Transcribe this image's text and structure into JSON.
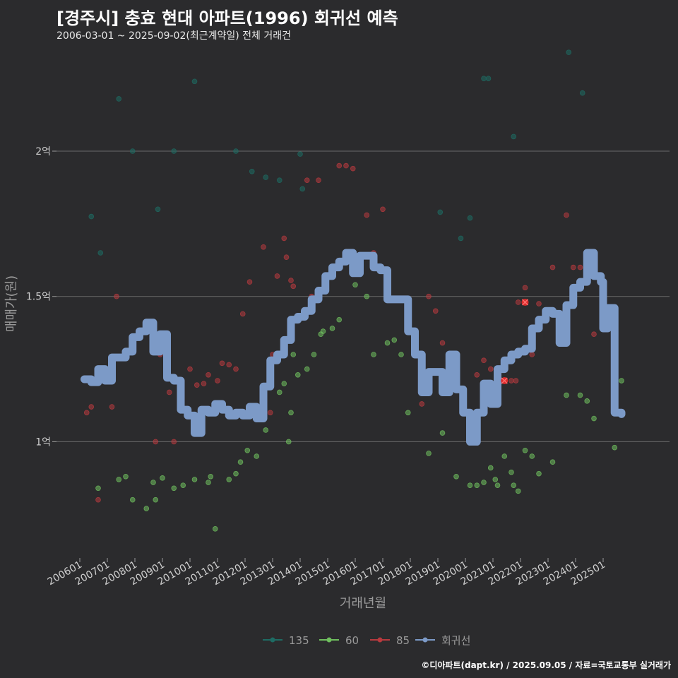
{
  "header": {
    "title": "[경주시] 충효 현대 아파트(1996) 회귀선 예측",
    "subtitle": "2006-03-01 ~ 2025-09-02(최근계약일) 전체 거래건"
  },
  "footer": {
    "credit": "©디아파트(dapt.kr) / 2025.09.05 / 자료=국토교통부 실거래가"
  },
  "chart_data": {
    "type": "scatter",
    "xlabel": "거래년월",
    "ylabel": "매매가(원)",
    "x_range": [
      "2006-01",
      "2025-09"
    ],
    "ylim": [
      60000000,
      235000000
    ],
    "x_ticks": [
      "200601",
      "200701",
      "200801",
      "200901",
      "201001",
      "201101",
      "201201",
      "201301",
      "201401",
      "201501",
      "201601",
      "201701",
      "201801",
      "201901",
      "202001",
      "202101",
      "202201",
      "202301",
      "202401",
      "202501"
    ],
    "y_ticks": [
      {
        "value": 100000000,
        "label": "1억"
      },
      {
        "value": 150000000,
        "label": "1.5억"
      },
      {
        "value": 200000000,
        "label": "2억"
      }
    ],
    "grid": true,
    "legend_position": "bottom",
    "series": [
      {
        "name": "135",
        "color": "#1e6b63",
        "points": [
          [
            "2006-06",
            177500000
          ],
          [
            "2006-10",
            165000000
          ],
          [
            "2007-06",
            218000000
          ],
          [
            "2007-12",
            200000000
          ],
          [
            "2008-11",
            180000000
          ],
          [
            "2009-06",
            200000000
          ],
          [
            "2010-03",
            224000000
          ],
          [
            "2011-09",
            200000000
          ],
          [
            "2012-04",
            193000000
          ],
          [
            "2012-10",
            191000000
          ],
          [
            "2013-04",
            190000000
          ],
          [
            "2014-01",
            199000000
          ],
          [
            "2014-02",
            187000000
          ],
          [
            "2019-02",
            179000000
          ],
          [
            "2019-11",
            170000000
          ],
          [
            "2020-03",
            177000000
          ],
          [
            "2020-09",
            225000000
          ],
          [
            "2020-11",
            225000000
          ],
          [
            "2021-10",
            205000000
          ],
          [
            "2023-10",
            234000000
          ],
          [
            "2024-04",
            220000000
          ]
        ]
      },
      {
        "name": "60",
        "color": "#6fbf5e",
        "points": [
          [
            "2006-09",
            84000000
          ],
          [
            "2007-06",
            87000000
          ],
          [
            "2007-09",
            88000000
          ],
          [
            "2007-12",
            80000000
          ],
          [
            "2008-06",
            77000000
          ],
          [
            "2008-09",
            86000000
          ],
          [
            "2008-10",
            80000000
          ],
          [
            "2009-01",
            87500000
          ],
          [
            "2009-06",
            84000000
          ],
          [
            "2009-10",
            85000000
          ],
          [
            "2010-03",
            87000000
          ],
          [
            "2010-09",
            86000000
          ],
          [
            "2010-10",
            88000000
          ],
          [
            "2010-12",
            70000000
          ],
          [
            "2011-06",
            87000000
          ],
          [
            "2011-09",
            89000000
          ],
          [
            "2011-11",
            93000000
          ],
          [
            "2012-02",
            97000000
          ],
          [
            "2012-06",
            95000000
          ],
          [
            "2012-10",
            104000000
          ],
          [
            "2013-04",
            117000000
          ],
          [
            "2013-06",
            120000000
          ],
          [
            "2013-08",
            100000000
          ],
          [
            "2013-09",
            110000000
          ],
          [
            "2013-10",
            130000000
          ],
          [
            "2013-12",
            123000000
          ],
          [
            "2014-04",
            125000000
          ],
          [
            "2014-07",
            130000000
          ],
          [
            "2014-10",
            137000000
          ],
          [
            "2014-11",
            138000000
          ],
          [
            "2015-03",
            139000000
          ],
          [
            "2015-06",
            142000000
          ],
          [
            "2016-01",
            154000000
          ],
          [
            "2016-06",
            150000000
          ],
          [
            "2016-09",
            130000000
          ],
          [
            "2017-03",
            134000000
          ],
          [
            "2017-06",
            135000000
          ],
          [
            "2017-09",
            130000000
          ],
          [
            "2017-12",
            110000000
          ],
          [
            "2018-09",
            96000000
          ],
          [
            "2019-03",
            103000000
          ],
          [
            "2019-09",
            88000000
          ],
          [
            "2020-03",
            85000000
          ],
          [
            "2020-06",
            85000000
          ],
          [
            "2020-09",
            86000000
          ],
          [
            "2020-12",
            91000000
          ],
          [
            "2021-02",
            87000000
          ],
          [
            "2021-03",
            85000000
          ],
          [
            "2021-06",
            95000000
          ],
          [
            "2021-09",
            89500000
          ],
          [
            "2021-10",
            85000000
          ],
          [
            "2021-12",
            83000000
          ],
          [
            "2022-03",
            97000000
          ],
          [
            "2022-06",
            95000000
          ],
          [
            "2022-09",
            89000000
          ],
          [
            "2023-03",
            93000000
          ],
          [
            "2023-09",
            116000000
          ],
          [
            "2024-03",
            116000000
          ],
          [
            "2024-06",
            114000000
          ],
          [
            "2024-09",
            108000000
          ],
          [
            "2025-06",
            98000000
          ],
          [
            "2025-09",
            121000000
          ]
        ]
      },
      {
        "name": "85",
        "color": "#b73a3e",
        "points": [
          [
            "2006-04",
            110000000
          ],
          [
            "2006-06",
            112000000
          ],
          [
            "2006-09",
            80000000
          ],
          [
            "2007-01",
            123500000
          ],
          [
            "2007-03",
            112000000
          ],
          [
            "2007-05",
            150000000
          ],
          [
            "2008-10",
            100000000
          ],
          [
            "2008-12",
            130000000
          ],
          [
            "2009-04",
            117000000
          ],
          [
            "2009-06",
            100000000
          ],
          [
            "2009-09",
            120000000
          ],
          [
            "2010-01",
            125000000
          ],
          [
            "2010-04",
            119500000
          ],
          [
            "2010-07",
            120000000
          ],
          [
            "2010-09",
            123000000
          ],
          [
            "2011-01",
            121000000
          ],
          [
            "2011-03",
            127000000
          ],
          [
            "2011-06",
            126500000
          ],
          [
            "2011-09",
            125000000
          ],
          [
            "2011-12",
            144000000
          ],
          [
            "2012-03",
            155000000
          ],
          [
            "2012-09",
            167000000
          ],
          [
            "2012-12",
            110000000
          ],
          [
            "2013-01",
            130000000
          ],
          [
            "2013-03",
            157000000
          ],
          [
            "2013-06",
            170000000
          ],
          [
            "2013-07",
            163500000
          ],
          [
            "2013-09",
            155500000
          ],
          [
            "2013-10",
            153500000
          ],
          [
            "2014-04",
            190000000
          ],
          [
            "2014-06",
            150000000
          ],
          [
            "2014-09",
            190000000
          ],
          [
            "2015-06",
            195000000
          ],
          [
            "2015-09",
            195000000
          ],
          [
            "2015-12",
            194000000
          ],
          [
            "2016-06",
            178000000
          ],
          [
            "2016-09",
            165000000
          ],
          [
            "2017-01",
            180000000
          ],
          [
            "2018-03",
            130000000
          ],
          [
            "2018-06",
            113000000
          ],
          [
            "2018-09",
            150000000
          ],
          [
            "2018-12",
            145000000
          ],
          [
            "2019-03",
            134000000
          ],
          [
            "2020-06",
            123000000
          ],
          [
            "2020-09",
            128000000
          ],
          [
            "2020-12",
            125000000
          ],
          [
            "2021-03",
            121000000
          ],
          [
            "2021-06",
            128000000
          ],
          [
            "2021-09",
            121000000
          ],
          [
            "2021-11",
            121000000
          ],
          [
            "2021-12",
            148000000
          ],
          [
            "2022-03",
            153000000
          ],
          [
            "2022-06",
            130000000
          ],
          [
            "2022-09",
            147500000
          ],
          [
            "2023-03",
            160000000
          ],
          [
            "2023-09",
            178000000
          ],
          [
            "2023-12",
            160000000
          ],
          [
            "2024-03",
            160000000
          ],
          [
            "2024-09",
            137000000
          ]
        ]
      },
      {
        "name": "회귀선",
        "color": "#7c9ac7",
        "points": [
          [
            "2006-03",
            121500000
          ],
          [
            "2006-06",
            120500000
          ],
          [
            "2006-09",
            125000000
          ],
          [
            "2006-12",
            121000000
          ],
          [
            "2007-03",
            129000000
          ],
          [
            "2007-06",
            129000000
          ],
          [
            "2007-09",
            131000000
          ],
          [
            "2007-12",
            136000000
          ],
          [
            "2008-03",
            138000000
          ],
          [
            "2008-06",
            141000000
          ],
          [
            "2008-09",
            131000000
          ],
          [
            "2008-12",
            137000000
          ],
          [
            "2009-03",
            122000000
          ],
          [
            "2009-06",
            121000000
          ],
          [
            "2009-09",
            111000000
          ],
          [
            "2009-12",
            109000000
          ],
          [
            "2010-03",
            103000000
          ],
          [
            "2010-06",
            111000000
          ],
          [
            "2010-09",
            110000000
          ],
          [
            "2010-12",
            113000000
          ],
          [
            "2011-03",
            111000000
          ],
          [
            "2011-06",
            109000000
          ],
          [
            "2011-09",
            110000000
          ],
          [
            "2011-12",
            109000000
          ],
          [
            "2012-03",
            112000000
          ],
          [
            "2012-06",
            108000000
          ],
          [
            "2012-09",
            119000000
          ],
          [
            "2012-12",
            128000000
          ],
          [
            "2013-03",
            130000000
          ],
          [
            "2013-06",
            135000000
          ],
          [
            "2013-09",
            142000000
          ],
          [
            "2013-12",
            143000000
          ],
          [
            "2014-03",
            145000000
          ],
          [
            "2014-06",
            149000000
          ],
          [
            "2014-09",
            152000000
          ],
          [
            "2014-12",
            157000000
          ],
          [
            "2015-03",
            160000000
          ],
          [
            "2015-06",
            162000000
          ],
          [
            "2015-09",
            165000000
          ],
          [
            "2015-12",
            158000000
          ],
          [
            "2016-03",
            164000000
          ],
          [
            "2016-06",
            164000000
          ],
          [
            "2016-09",
            160000000
          ],
          [
            "2016-12",
            159000000
          ],
          [
            "2017-03",
            149000000
          ],
          [
            "2017-06",
            149000000
          ],
          [
            "2017-09",
            149000000
          ],
          [
            "2017-12",
            138000000
          ],
          [
            "2018-03",
            130000000
          ],
          [
            "2018-06",
            117000000
          ],
          [
            "2018-09",
            124000000
          ],
          [
            "2018-12",
            124000000
          ],
          [
            "2019-03",
            117000000
          ],
          [
            "2019-06",
            130000000
          ],
          [
            "2019-09",
            118000000
          ],
          [
            "2019-12",
            110000000
          ],
          [
            "2020-03",
            100000000
          ],
          [
            "2020-06",
            110000000
          ],
          [
            "2020-09",
            120000000
          ],
          [
            "2020-12",
            113000000
          ],
          [
            "2021-03",
            125000000
          ],
          [
            "2021-06",
            128000000
          ],
          [
            "2021-09",
            130000000
          ],
          [
            "2021-12",
            131000000
          ],
          [
            "2022-03",
            132000000
          ],
          [
            "2022-06",
            139000000
          ],
          [
            "2022-09",
            142000000
          ],
          [
            "2022-12",
            145000000
          ],
          [
            "2023-03",
            144000000
          ],
          [
            "2023-06",
            134000000
          ],
          [
            "2023-09",
            147000000
          ],
          [
            "2023-12",
            153000000
          ],
          [
            "2024-03",
            155000000
          ],
          [
            "2024-06",
            165000000
          ],
          [
            "2024-09",
            157000000
          ],
          [
            "2024-12",
            155000000
          ],
          [
            "2025-01",
            139000000
          ],
          [
            "2025-03",
            146000000
          ],
          [
            "2025-06",
            110000000
          ],
          [
            "2025-09",
            109500000
          ]
        ]
      }
    ],
    "highlights": [
      {
        "x": "2021-06",
        "y": 121000000,
        "color": "#d92b2b"
      },
      {
        "x": "2022-03",
        "y": 148000000,
        "color": "#d92b2b"
      }
    ]
  }
}
